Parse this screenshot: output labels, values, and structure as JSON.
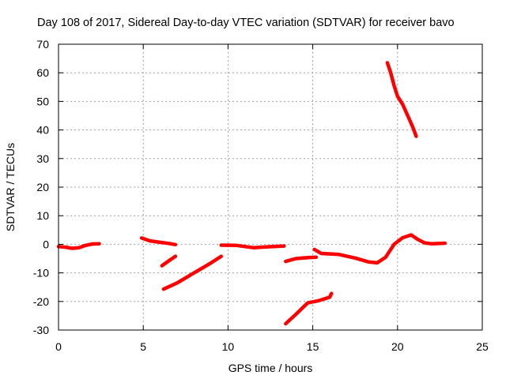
{
  "chart_data": {
    "type": "scatter",
    "title": "Day 108 of 2017, Sidereal Day-to-day VTEC variation (SDTVAR) for receiver bavo",
    "xlabel": "GPS time / hours",
    "ylabel": "SDTVAR / TECUs",
    "xlim": [
      0,
      25
    ],
    "ylim": [
      -30,
      70
    ],
    "x_ticks": [
      0,
      5,
      10,
      15,
      20,
      25
    ],
    "y_ticks": [
      -30,
      -20,
      -10,
      0,
      10,
      20,
      30,
      40,
      50,
      60,
      70
    ],
    "grid": true,
    "marker_color": "#ff0000",
    "series": [
      {
        "x": [
          0.0,
          0.4,
          0.8,
          1.2,
          1.6,
          2.0,
          2.4
        ],
        "y": [
          -0.8,
          -1.0,
          -1.4,
          -1.2,
          -0.4,
          0.1,
          0.2
        ]
      },
      {
        "x": [
          4.9,
          5.4,
          6.0,
          6.5,
          6.9
        ],
        "y": [
          2.2,
          1.2,
          0.7,
          0.3,
          -0.1
        ]
      },
      {
        "x": [
          6.1,
          6.5,
          6.9
        ],
        "y": [
          -7.5,
          -5.8,
          -4.2
        ]
      },
      {
        "x": [
          6.2,
          7.0,
          8.0,
          9.0,
          9.6
        ],
        "y": [
          -15.7,
          -13.5,
          -10.0,
          -6.5,
          -4.2
        ]
      },
      {
        "x": [
          9.6,
          10.5,
          11.5,
          12.2,
          13.3
        ],
        "y": [
          -0.3,
          -0.4,
          -1.2,
          -0.9,
          -0.6
        ]
      },
      {
        "x": [
          13.4,
          14.0,
          14.8,
          15.2
        ],
        "y": [
          -6.0,
          -5.0,
          -4.6,
          -4.5
        ]
      },
      {
        "x": [
          13.4,
          14.0,
          14.7,
          15.3,
          16.0,
          16.1
        ],
        "y": [
          -27.8,
          -24.5,
          -20.5,
          -19.8,
          -18.5,
          -17.2
        ]
      },
      {
        "x": [
          15.1,
          15.5,
          16.5,
          17.5,
          18.3,
          18.8,
          19.3,
          19.8,
          20.3,
          20.8,
          21.2,
          21.6,
          22.0,
          22.8
        ],
        "y": [
          -1.8,
          -3.2,
          -3.5,
          -4.8,
          -6.2,
          -6.5,
          -4.5,
          0.0,
          2.3,
          3.3,
          1.7,
          0.5,
          0.2,
          0.4
        ]
      },
      {
        "x": [
          19.4,
          19.6,
          19.8,
          20.0,
          20.3,
          20.6,
          20.9,
          21.1
        ],
        "y": [
          63.5,
          60.0,
          55.5,
          51.8,
          49.0,
          45.0,
          41.0,
          37.8
        ]
      }
    ]
  }
}
